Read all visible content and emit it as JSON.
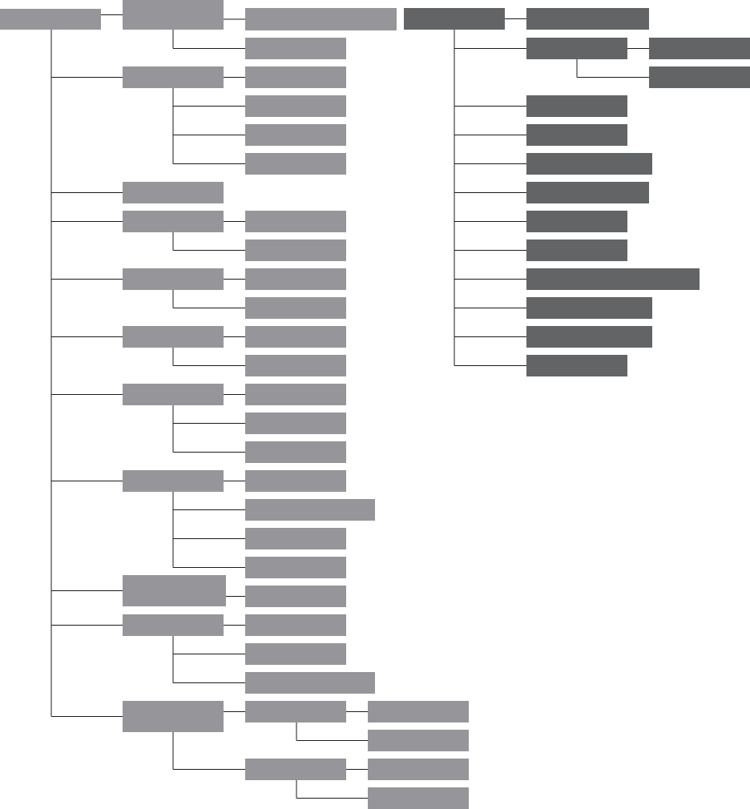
{
  "colors": {
    "left_tree_box": "#96969a",
    "right_tree_box": "#636466",
    "connector_line": "#1a1a1a",
    "background": "#ffffff"
  },
  "trees": [
    {
      "name": "left-tree",
      "box_color": "left_tree_box",
      "root": {
        "label": "",
        "children": [
          {
            "label": "",
            "children": [
              {
                "label": "",
                "children": []
              },
              {
                "label": "",
                "children": []
              }
            ]
          },
          {
            "label": "",
            "children": [
              {
                "label": "",
                "children": []
              },
              {
                "label": "",
                "children": []
              },
              {
                "label": "",
                "children": []
              },
              {
                "label": "",
                "children": []
              }
            ]
          },
          {
            "label": "",
            "children": []
          },
          {
            "label": "",
            "children": [
              {
                "label": "",
                "children": []
              },
              {
                "label": "",
                "children": []
              }
            ]
          },
          {
            "label": "",
            "children": [
              {
                "label": "",
                "children": []
              },
              {
                "label": "",
                "children": []
              }
            ]
          },
          {
            "label": "",
            "children": [
              {
                "label": "",
                "children": []
              },
              {
                "label": "",
                "children": []
              }
            ]
          },
          {
            "label": "",
            "children": [
              {
                "label": "",
                "children": []
              },
              {
                "label": "",
                "children": []
              },
              {
                "label": "",
                "children": []
              }
            ]
          },
          {
            "label": "",
            "children": [
              {
                "label": "",
                "children": []
              },
              {
                "label": "",
                "children": []
              },
              {
                "label": "",
                "children": []
              },
              {
                "label": "",
                "children": []
              }
            ]
          },
          {
            "label": "",
            "children": [
              {
                "label": "",
                "children": []
              }
            ]
          },
          {
            "label": "",
            "children": [
              {
                "label": "",
                "children": []
              },
              {
                "label": "",
                "children": []
              },
              {
                "label": "",
                "children": []
              }
            ]
          },
          {
            "label": "",
            "children": [
              {
                "label": "",
                "children": [
                  {
                    "label": "",
                    "children": []
                  },
                  {
                    "label": "",
                    "children": []
                  }
                ]
              },
              {
                "label": "",
                "children": [
                  {
                    "label": "",
                    "children": []
                  },
                  {
                    "label": "",
                    "children": []
                  }
                ]
              }
            ]
          }
        ]
      }
    },
    {
      "name": "right-tree",
      "box_color": "right_tree_box",
      "root": {
        "label": "",
        "children": [
          {
            "label": "",
            "children": []
          },
          {
            "label": "",
            "children": [
              {
                "label": "",
                "children": []
              },
              {
                "label": "",
                "children": []
              }
            ]
          },
          {
            "label": "",
            "children": []
          },
          {
            "label": "",
            "children": []
          },
          {
            "label": "",
            "children": []
          },
          {
            "label": "",
            "children": []
          },
          {
            "label": "",
            "children": []
          },
          {
            "label": "",
            "children": []
          },
          {
            "label": "",
            "children": []
          },
          {
            "label": "",
            "children": []
          },
          {
            "label": "",
            "children": []
          },
          {
            "label": "",
            "children": []
          }
        ]
      }
    }
  ]
}
